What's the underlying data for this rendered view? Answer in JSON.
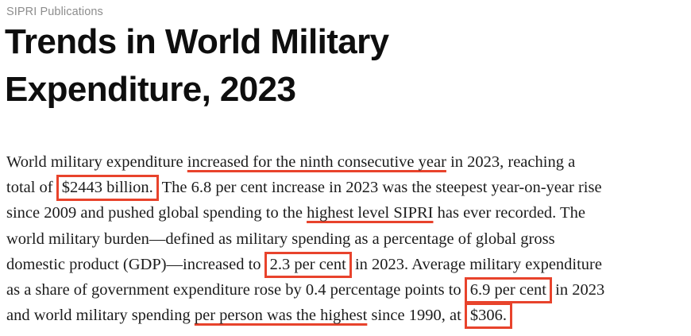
{
  "page": {
    "kicker": "SIPRI Publications",
    "title_line1": "Trends in World Military",
    "title_line2": "Expenditure, 2023"
  },
  "colors": {
    "annotation_red": "#e8432c",
    "kicker_gray": "#8d8d8d",
    "title_black": "#0e0e0e",
    "body_black": "#1c1c1c"
  },
  "paragraph": {
    "lines": [
      {
        "segments": [
          {
            "text": "World military expenditure ",
            "mark": "none"
          },
          {
            "text": "increased for the ninth consecutive year",
            "mark": "underline"
          },
          {
            "text": " in 2023, reaching a",
            "mark": "none"
          }
        ]
      },
      {
        "segments": [
          {
            "text": "total of ",
            "mark": "none"
          },
          {
            "text": "$2443 billion.",
            "mark": "box"
          },
          {
            "text": " The 6.8 per cent increase in 2023 was the steepest year-on-year rise",
            "mark": "none"
          }
        ]
      },
      {
        "segments": [
          {
            "text": "since 2009 and pushed global spending to the ",
            "mark": "none"
          },
          {
            "text": "highest level SIPRI",
            "mark": "underline"
          },
          {
            "text": " has ever recorded. The",
            "mark": "none"
          }
        ]
      },
      {
        "segments": [
          {
            "text": "world military burden—defined as military spending as a percentage of global gross",
            "mark": "none"
          }
        ]
      },
      {
        "segments": [
          {
            "text": "domestic product (GDP)—increased to ",
            "mark": "none"
          },
          {
            "text": "2.3 per cent",
            "mark": "box"
          },
          {
            "text": " in 2023. Average military expenditure",
            "mark": "none"
          }
        ]
      },
      {
        "segments": [
          {
            "text": "as a share of government expenditure rose by 0.4 percentage points to ",
            "mark": "none"
          },
          {
            "text": "6.9 per cent",
            "mark": "box"
          },
          {
            "text": " in 2023",
            "mark": "none"
          }
        ]
      },
      {
        "segments": [
          {
            "text": "and world military spending ",
            "mark": "none"
          },
          {
            "text": "per person was the highest",
            "mark": "underline"
          },
          {
            "text": " since 1990, at ",
            "mark": "none"
          },
          {
            "text": "$306.",
            "mark": "box"
          }
        ]
      }
    ]
  }
}
